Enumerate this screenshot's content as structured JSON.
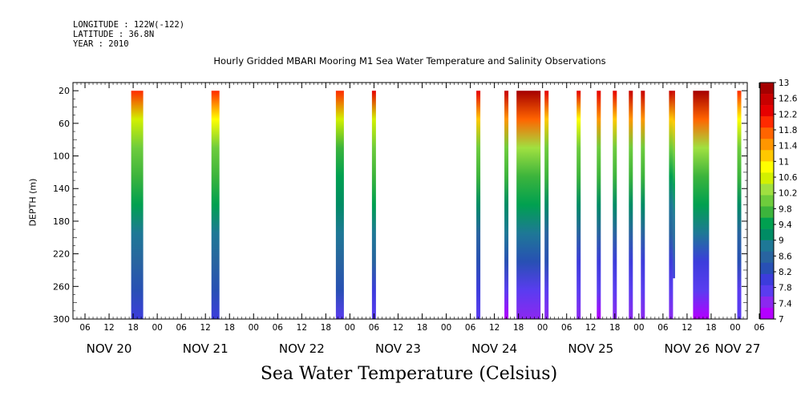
{
  "header": {
    "longitude": "LONGITUDE : 122W(-122)",
    "latitude": "LATITUDE : 36.8N",
    "year": "YEAR : 2010"
  },
  "chart_data": {
    "type": "heatmap",
    "title": "Hourly Gridded MBARI Mooring M1 Sea Water Temperature and Salinity Observations",
    "xlabel": "Sea Water Temperature (Celsius)",
    "ylabel": "DEPTH (m)",
    "x_unit": "hours since 2010-11-20 00:00",
    "xlim": [
      3,
      171
    ],
    "ylim": [
      300,
      10
    ],
    "y_ticks": [
      20,
      60,
      100,
      140,
      180,
      220,
      260,
      300
    ],
    "x_tick_labels": [
      "06",
      "12",
      "18",
      "00",
      "06",
      "12",
      "18",
      "00",
      "06",
      "12",
      "18",
      "00",
      "06",
      "12",
      "18",
      "00",
      "06",
      "12",
      "18",
      "00",
      "06",
      "12",
      "18",
      "00",
      "06",
      "12",
      "18",
      "00",
      "06"
    ],
    "day_labels": [
      "NOV 20",
      "NOV 21",
      "NOV 22",
      "NOV 23",
      "NOV 24",
      "NOV 25",
      "NOV 26",
      "NOV 27"
    ],
    "colorbar": {
      "levels": [
        13,
        12.6,
        12.2,
        11.8,
        11.4,
        11,
        10.6,
        10.2,
        9.8,
        9.4,
        9,
        8.6,
        8.2,
        7.8,
        7.4,
        7
      ],
      "colors": [
        "#a50000",
        "#c80000",
        "#e60000",
        "#ff2a00",
        "#ff6400",
        "#ff9600",
        "#ffc800",
        "#ffff00",
        "#d2f000",
        "#a0e040",
        "#6ecc3c",
        "#3cb43c",
        "#00a050",
        "#008c64",
        "#1e7896",
        "#2864a0",
        "#2850b4",
        "#3c3cdc",
        "#5a3cf0",
        "#8c28f0",
        "#b400ff"
      ]
    },
    "profiles": [
      {
        "start": 17.5,
        "end": 20.5,
        "top": 20,
        "bottom": 300,
        "temps": [
          12.0,
          10.6,
          9.9,
          9.6,
          9.3,
          9.0,
          8.6,
          8.3,
          7.9
        ]
      },
      {
        "start": 37.5,
        "end": 39.5,
        "top": 20,
        "bottom": 300,
        "temps": [
          12.1,
          10.8,
          10.0,
          9.7,
          9.4,
          9.0,
          8.6,
          8.3,
          7.9
        ]
      },
      {
        "start": 68.5,
        "end": 70.5,
        "top": 20,
        "bottom": 300,
        "temps": [
          12.0,
          10.5,
          9.8,
          9.5,
          9.2,
          8.9,
          8.5,
          8.2,
          7.8
        ]
      },
      {
        "start": 77.5,
        "end": 78.5,
        "top": 20,
        "bottom": 300,
        "temps": [
          12.2,
          10.7,
          9.9,
          9.6,
          9.3,
          9.0,
          8.5,
          8.1,
          7.7
        ]
      },
      {
        "start": 103.5,
        "end": 104.5,
        "top": 20,
        "bottom": 300,
        "temps": [
          12.3,
          11.2,
          10.0,
          9.6,
          9.1,
          8.7,
          8.3,
          8.0,
          7.8
        ]
      },
      {
        "start": 110.5,
        "end": 111.5,
        "top": 20,
        "bottom": 300,
        "temps": [
          12.5,
          11.4,
          10.0,
          9.6,
          9.2,
          8.8,
          8.2,
          7.8,
          7.2
        ]
      },
      {
        "start": 113.5,
        "end": 119.5,
        "top": 20,
        "bottom": 300,
        "temps": [
          12.8,
          11.6,
          10.2,
          9.8,
          9.3,
          8.8,
          8.2,
          7.8,
          7.4
        ]
      },
      {
        "start": 120.5,
        "end": 121.5,
        "top": 20,
        "bottom": 300,
        "temps": [
          12.4,
          11.2,
          10.0,
          9.6,
          9.1,
          8.7,
          8.2,
          7.8,
          7.4
        ]
      },
      {
        "start": 128.5,
        "end": 129.5,
        "top": 20,
        "bottom": 300,
        "temps": [
          12.3,
          11.0,
          9.9,
          9.6,
          9.1,
          8.6,
          8.1,
          7.7,
          7.3
        ]
      },
      {
        "start": 133.5,
        "end": 134.5,
        "top": 20,
        "bottom": 300,
        "temps": [
          12.4,
          11.3,
          10.0,
          9.6,
          9.1,
          8.6,
          8.1,
          7.6,
          7.2
        ]
      },
      {
        "start": 137.5,
        "end": 138.5,
        "top": 20,
        "bottom": 300,
        "temps": [
          12.2,
          11.1,
          10.0,
          9.6,
          9.1,
          8.6,
          8.1,
          7.7,
          7.4
        ]
      },
      {
        "start": 141.5,
        "end": 142.5,
        "top": 20,
        "bottom": 300,
        "temps": [
          12.6,
          11.4,
          10.1,
          9.6,
          9.1,
          8.6,
          8.1,
          7.7,
          7.4
        ]
      },
      {
        "start": 144.5,
        "end": 145.5,
        "top": 20,
        "bottom": 300,
        "temps": [
          12.5,
          11.3,
          10.0,
          9.6,
          9.1,
          8.6,
          8.1,
          7.7,
          7.4
        ]
      },
      {
        "start": 151.5,
        "end": 152.5,
        "top": 20,
        "bottom": 300,
        "temps": [
          12.6,
          11.2,
          10.0,
          9.5,
          9.0,
          8.5,
          8.1,
          7.7,
          7.4
        ]
      },
      {
        "start": 152.5,
        "end": 153.0,
        "top": 20,
        "bottom": 250,
        "temps": [
          12.6,
          11.2,
          10.0,
          9.5,
          9.0,
          8.5,
          8.1
        ]
      },
      {
        "start": 157.5,
        "end": 161.5,
        "top": 20,
        "bottom": 300,
        "temps": [
          12.9,
          11.8,
          10.4,
          9.8,
          9.3,
          8.8,
          8.1,
          7.6,
          7.1
        ]
      },
      {
        "start": 168.5,
        "end": 169.5,
        "top": 20,
        "bottom": 300,
        "temps": [
          11.9,
          10.8,
          10.0,
          9.6,
          9.1,
          8.6,
          8.2,
          7.8,
          7.6
        ]
      }
    ]
  }
}
